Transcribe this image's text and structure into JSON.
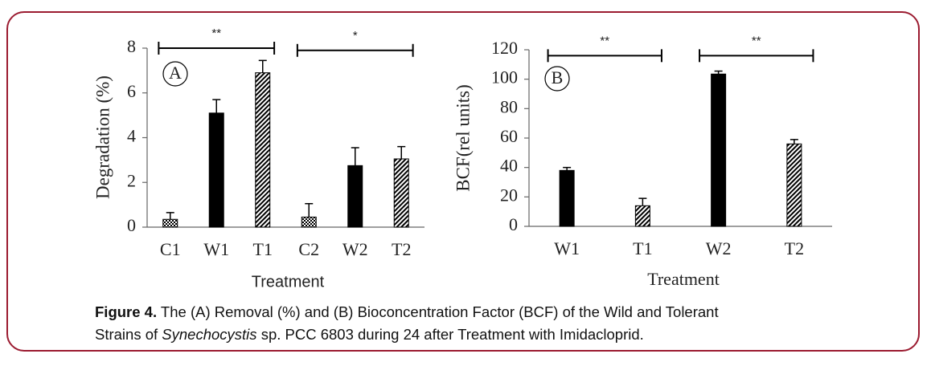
{
  "chart_data": [
    {
      "type": "bar",
      "panel": "A",
      "categories": [
        "C1",
        "W1",
        "T1",
        "C2",
        "W2",
        "T2"
      ],
      "values": [
        0.35,
        5.1,
        6.9,
        0.45,
        2.75,
        3.05
      ],
      "errors": [
        0.3,
        0.6,
        0.55,
        0.6,
        0.8,
        0.55
      ],
      "patterns": [
        "dots",
        "solid",
        "hatch",
        "dots",
        "solid",
        "hatch"
      ],
      "color": "#000000",
      "ylim": [
        0,
        8
      ],
      "yticks": [
        0,
        2,
        4,
        6,
        8
      ],
      "y_label": "Degradation (%)",
      "x_label": "Treatment",
      "annotations": [
        {
          "text": "**",
          "from": "C1",
          "to": "T1",
          "y": 8
        },
        {
          "text": "*",
          "from": "C2",
          "to": "T2",
          "y": 7.9
        }
      ]
    },
    {
      "type": "bar",
      "panel": "B",
      "categories": [
        "W1",
        "T1",
        "W2",
        "T2"
      ],
      "values": [
        38,
        14,
        103.5,
        56
      ],
      "errors": [
        2,
        5,
        2,
        3
      ],
      "patterns": [
        "solid",
        "hatch",
        "solid",
        "hatch"
      ],
      "color": "#000000",
      "ylim": [
        0,
        120
      ],
      "yticks": [
        0,
        20,
        40,
        60,
        80,
        100,
        120
      ],
      "y_label": "BCF(rel units)",
      "x_label": "Treatment",
      "annotations": [
        {
          "text": "**",
          "from": "W1",
          "to": "T1",
          "y": 116
        },
        {
          "text": "**",
          "from": "W2",
          "to": "T2",
          "y": 116
        }
      ]
    }
  ],
  "caption": {
    "label": "Figure 4.",
    "line1": "The (A) Removal (%) and (B) Bioconcentration Factor (BCF) of the Wild and Tolerant",
    "line2_start": "Strains of",
    "organism": "Synechocystis",
    "line2_end": "sp. PCC 6803 during 24 after Treatment with Imidacloprid."
  }
}
